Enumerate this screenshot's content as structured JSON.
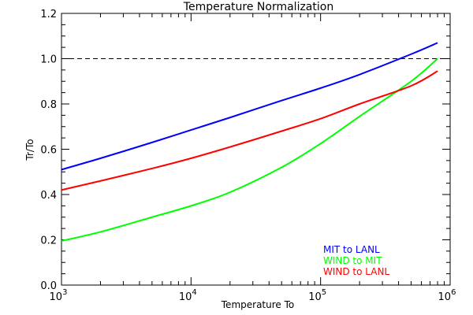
{
  "chart_data": {
    "type": "line",
    "title": "Temperature Normalization",
    "xlabel": "Temperature To",
    "ylabel": "Tr/To",
    "x_scale": "log",
    "xlim": [
      1000,
      1000000
    ],
    "ylim": [
      0.0,
      1.2
    ],
    "x_ticks": [
      {
        "value": 1000,
        "base": "10",
        "exp": "3"
      },
      {
        "value": 10000,
        "base": "10",
        "exp": "4"
      },
      {
        "value": 100000,
        "base": "10",
        "exp": "5"
      },
      {
        "value": 1000000,
        "base": "10",
        "exp": "6"
      }
    ],
    "y_ticks": [
      {
        "value": 0.0,
        "label": "0.0"
      },
      {
        "value": 0.2,
        "label": "0.2"
      },
      {
        "value": 0.4,
        "label": "0.4"
      },
      {
        "value": 0.6,
        "label": "0.6"
      },
      {
        "value": 0.8,
        "label": "0.8"
      },
      {
        "value": 1.0,
        "label": "1.0"
      },
      {
        "value": 1.2,
        "label": "1.2"
      }
    ],
    "reference_line": {
      "y": 1.0,
      "style": "dashed",
      "color": "#000000"
    },
    "grid": false,
    "legend_position": "bottom-right",
    "series": [
      {
        "name": "MIT to LANL",
        "color": "#0000ff",
        "x": [
          1000,
          2000,
          5000,
          10000,
          20000,
          50000,
          100000,
          200000,
          500000,
          800000
        ],
        "y": [
          0.51,
          0.56,
          0.63,
          0.685,
          0.74,
          0.815,
          0.87,
          0.93,
          1.02,
          1.07
        ]
      },
      {
        "name": "WIND to MIT",
        "color": "#00ff00",
        "x": [
          1000,
          2000,
          5000,
          10000,
          20000,
          50000,
          100000,
          200000,
          500000,
          800000
        ],
        "y": [
          0.195,
          0.235,
          0.3,
          0.35,
          0.41,
          0.52,
          0.625,
          0.745,
          0.9,
          1.0
        ]
      },
      {
        "name": "WIND to LANL",
        "color": "#ff0000",
        "x": [
          1000,
          2000,
          5000,
          10000,
          20000,
          50000,
          100000,
          200000,
          500000,
          800000
        ],
        "y": [
          0.42,
          0.46,
          0.515,
          0.56,
          0.61,
          0.68,
          0.735,
          0.8,
          0.88,
          0.945
        ]
      }
    ]
  }
}
